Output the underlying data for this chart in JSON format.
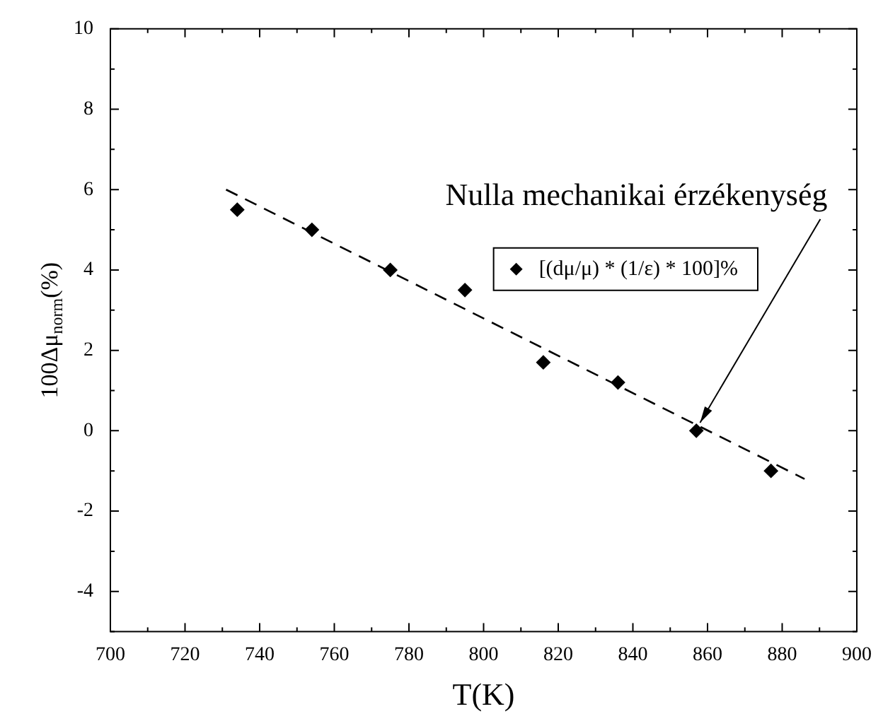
{
  "chart_data": {
    "type": "scatter",
    "xlabel": "T(K)",
    "ylabel": "100Δμ$_{norm}$(%)",
    "xlim": [
      700,
      900
    ],
    "xticks": [
      700,
      720,
      740,
      760,
      780,
      800,
      820,
      840,
      860,
      880,
      900
    ],
    "ylim": [
      -5,
      10
    ],
    "yticks": [
      -4,
      -2,
      0,
      2,
      4,
      6,
      8,
      10
    ],
    "grid": false,
    "legend": "top right",
    "marker": "diamond",
    "series": [
      {
        "name": "[(dμ/μ) * (1/ε) * 100]%",
        "color": "#000000",
        "x": [
          734,
          754,
          775,
          795,
          816,
          836,
          857,
          877
        ],
        "values": [
          5.5,
          5.0,
          4.0,
          3.5,
          1.7,
          1.2,
          0.0,
          -1.0
        ]
      },
      {
        "type": "line",
        "color": "#000000",
        "line_style": "dashed",
        "marker": "none",
        "x": [
          731,
          886
        ],
        "values": [
          6.0,
          -1.2
        ]
      }
    ],
    "annotations": [
      {
        "text": "Nulla mechanikai érzékenység",
        "x": 858,
        "y": 0.2
      }
    ]
  }
}
